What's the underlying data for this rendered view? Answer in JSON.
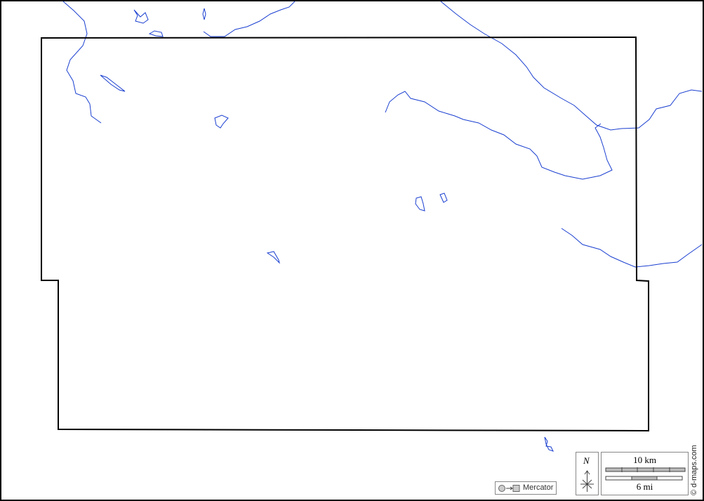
{
  "map": {
    "projection_label": "Mercator",
    "credit": "© d-maps.com",
    "north_label": "N",
    "scale_km_label": "10 km",
    "scale_mi_label": "6 mi",
    "colors": {
      "water": "#1a3fd0",
      "boundary": "#000000",
      "legend_gray": "#bbbbbb"
    }
  }
}
